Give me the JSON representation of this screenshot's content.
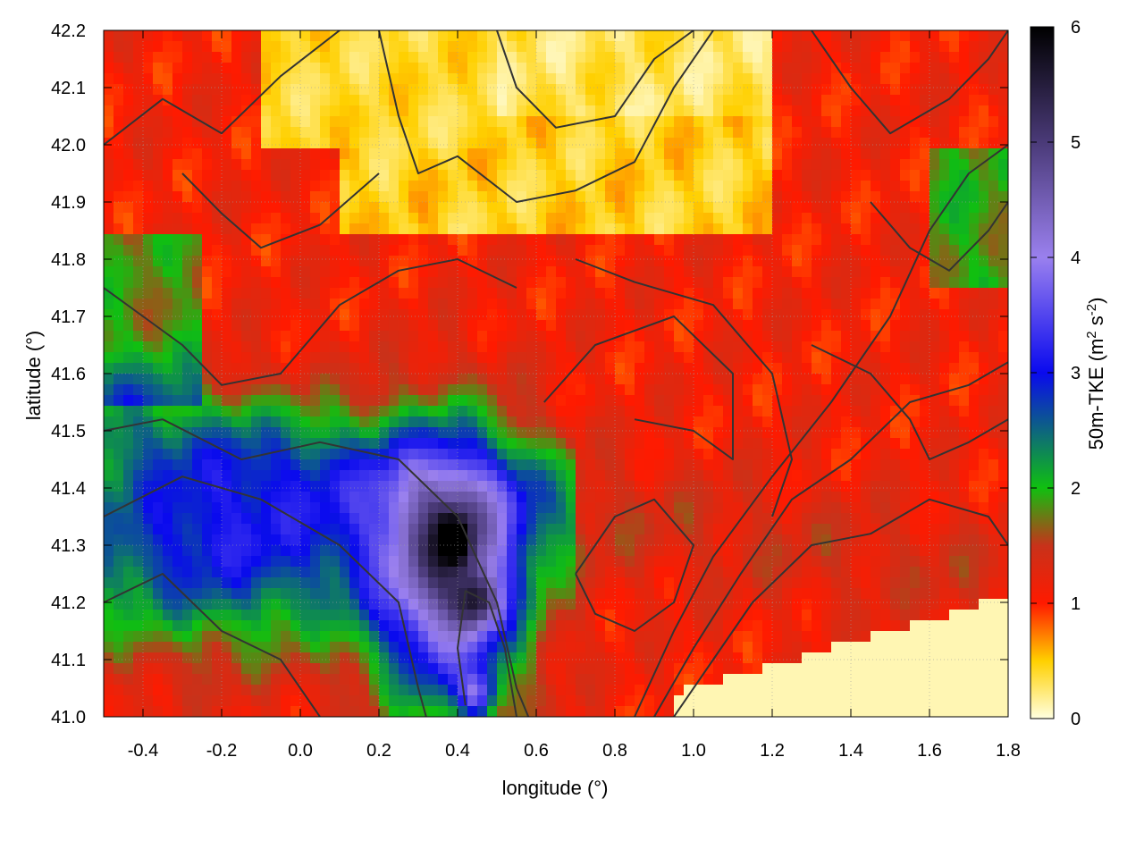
{
  "chart_data": {
    "type": "heatmap",
    "xlabel": "longitude (°)",
    "ylabel": "latitude (°)",
    "colorbar_label": "50m-TKE (m2 s-2)",
    "colorbar_label_parts": {
      "base": "50m-TKE (m",
      "sup1": "2",
      "mid": " s",
      "sup2": "-2",
      "end": ")"
    },
    "xlim": [
      -0.5,
      1.8
    ],
    "ylim": [
      41.0,
      42.2
    ],
    "clim": [
      0,
      6
    ],
    "x_ticks": [
      "-0.4",
      "-0.2",
      "0.0",
      "0.2",
      "0.4",
      "0.6",
      "0.8",
      "1.0",
      "1.2",
      "1.4",
      "1.6",
      "1.8"
    ],
    "x_tick_values": [
      -0.4,
      -0.2,
      0.0,
      0.2,
      0.4,
      0.6,
      0.8,
      1.0,
      1.2,
      1.4,
      1.6,
      1.8
    ],
    "y_ticks": [
      "41.0",
      "41.1",
      "41.2",
      "41.3",
      "41.4",
      "41.5",
      "41.6",
      "41.7",
      "41.8",
      "41.9",
      "42.0",
      "42.1",
      "42.2"
    ],
    "y_tick_values": [
      41.0,
      41.1,
      41.2,
      41.3,
      41.4,
      41.5,
      41.6,
      41.7,
      41.8,
      41.9,
      42.0,
      42.1,
      42.2
    ],
    "colorbar_ticks": [
      "0",
      "1",
      "2",
      "3",
      "4",
      "5",
      "6"
    ],
    "colorbar_tick_values": [
      0,
      1,
      2,
      3,
      4,
      5,
      6
    ],
    "colormap": [
      [
        0.0,
        "#ffffe0"
      ],
      [
        0.5,
        "#ffd000"
      ],
      [
        1.0,
        "#ff1a00"
      ],
      [
        1.5,
        "#c8321a"
      ],
      [
        2.0,
        "#10c010"
      ],
      [
        3.0,
        "#0a0aee"
      ],
      [
        4.0,
        "#9a80ee"
      ],
      [
        5.0,
        "#4a3a78"
      ],
      [
        6.0,
        "#000000"
      ]
    ],
    "grid": true,
    "colors": {
      "contour": "#333333",
      "frame": "#000000",
      "grid": "#a0a0a0"
    }
  }
}
